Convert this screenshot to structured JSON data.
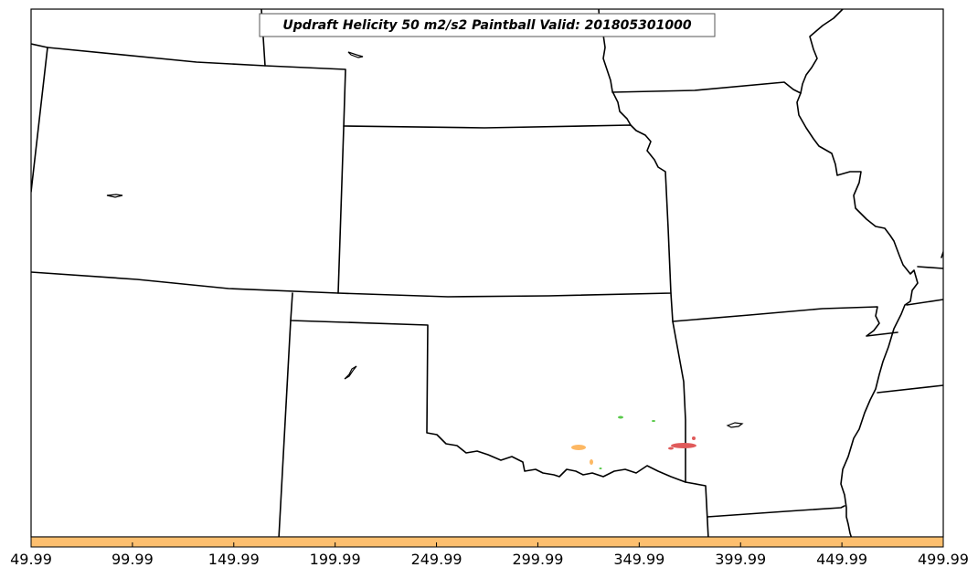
{
  "title": "Updraft Helicity 50 m2/s2 Paintball Valid: 201805301000",
  "colorbar": {
    "color": "#fdbf6f",
    "ticks": [
      "49.99",
      "99.99",
      "149.99",
      "199.99",
      "249.99",
      "299.99",
      "349.99",
      "399.99",
      "449.99",
      "499.99"
    ]
  },
  "paintball_colors": {
    "orange": "#fdb863",
    "red": "#e05a5a",
    "green": "#59c94a"
  }
}
